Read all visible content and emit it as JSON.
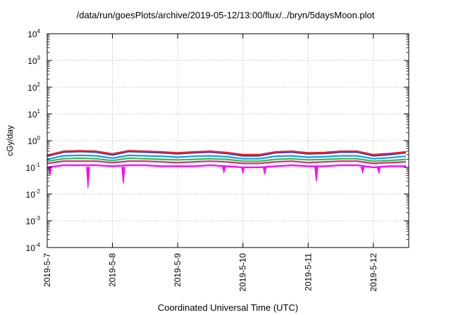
{
  "title": "/data/run/goesPlots/archive/2019-05-12/13:00/flux/../bryn/5daysMoon.plot",
  "chart_data": {
    "type": "line",
    "title": "/data/run/goesPlots/archive/2019-05-12/13:00/flux/../bryn/5daysMoon.plot",
    "xlabel": "Coordinated Universal Time (UTC)",
    "ylabel": "cGy/day",
    "yscale": "log",
    "ylim": [
      0.0001,
      10000
    ],
    "y_ticks": [
      {
        "base": "10",
        "exp": "4",
        "value": 10000
      },
      {
        "base": "10",
        "exp": "3",
        "value": 1000
      },
      {
        "base": "10",
        "exp": "2",
        "value": 100
      },
      {
        "base": "10",
        "exp": "1",
        "value": 10
      },
      {
        "base": "10",
        "exp": "0",
        "value": 1
      },
      {
        "base": "10",
        "exp": "-1",
        "value": 0.1
      },
      {
        "base": "10",
        "exp": "-2",
        "value": 0.01
      },
      {
        "base": "10",
        "exp": "-3",
        "value": 0.001
      },
      {
        "base": "10",
        "exp": "-4",
        "value": 0.0001
      }
    ],
    "xlim": [
      "2019-05-07 00:00",
      "2019-05-12 13:00"
    ],
    "x_ticks": [
      "2019-5-7",
      "2019-5-8",
      "2019-5-9",
      "2019-5-10",
      "2019-5-11",
      "2019-5-12"
    ],
    "x": [
      "2019-05-07 00:00",
      "2019-05-07 06:00",
      "2019-05-07 12:00",
      "2019-05-07 18:00",
      "2019-05-08 00:00",
      "2019-05-08 06:00",
      "2019-05-08 12:00",
      "2019-05-08 18:00",
      "2019-05-09 00:00",
      "2019-05-09 06:00",
      "2019-05-09 12:00",
      "2019-05-09 18:00",
      "2019-05-10 00:00",
      "2019-05-10 06:00",
      "2019-05-10 12:00",
      "2019-05-10 18:00",
      "2019-05-11 00:00",
      "2019-05-11 06:00",
      "2019-05-11 12:00",
      "2019-05-11 18:00",
      "2019-05-12 00:00",
      "2019-05-12 06:00",
      "2019-05-12 12:00"
    ],
    "grid": true,
    "series": [
      {
        "color": "#e8242d",
        "values": [
          0.28,
          0.4,
          0.42,
          0.4,
          0.32,
          0.42,
          0.4,
          0.38,
          0.35,
          0.38,
          0.4,
          0.36,
          0.3,
          0.3,
          0.38,
          0.4,
          0.35,
          0.36,
          0.4,
          0.4,
          0.3,
          0.33,
          0.38
        ]
      },
      {
        "color": "#2c3fcf",
        "values": [
          0.26,
          0.37,
          0.39,
          0.37,
          0.29,
          0.39,
          0.37,
          0.35,
          0.32,
          0.35,
          0.37,
          0.33,
          0.27,
          0.27,
          0.35,
          0.37,
          0.32,
          0.33,
          0.37,
          0.37,
          0.27,
          0.3,
          0.35
        ]
      },
      {
        "color": "#1a9ae0",
        "values": [
          0.2,
          0.27,
          0.28,
          0.27,
          0.22,
          0.28,
          0.27,
          0.26,
          0.24,
          0.26,
          0.27,
          0.25,
          0.21,
          0.21,
          0.26,
          0.27,
          0.24,
          0.25,
          0.27,
          0.27,
          0.21,
          0.23,
          0.26
        ]
      },
      {
        "color": "#2bbf4a",
        "values": [
          0.17,
          0.21,
          0.22,
          0.21,
          0.18,
          0.22,
          0.21,
          0.2,
          0.19,
          0.2,
          0.21,
          0.2,
          0.17,
          0.17,
          0.2,
          0.21,
          0.19,
          0.2,
          0.21,
          0.21,
          0.17,
          0.18,
          0.2
        ]
      },
      {
        "color": "#d6286e",
        "values": [
          0.14,
          0.17,
          0.17,
          0.17,
          0.15,
          0.17,
          0.17,
          0.16,
          0.15,
          0.16,
          0.17,
          0.16,
          0.14,
          0.14,
          0.16,
          0.17,
          0.15,
          0.16,
          0.17,
          0.17,
          0.14,
          0.15,
          0.16
        ]
      },
      {
        "color": "#ff00ff",
        "values": [
          0.1,
          0.12,
          0.12,
          0.12,
          0.11,
          0.12,
          0.12,
          0.11,
          0.11,
          0.11,
          0.12,
          0.11,
          0.1,
          0.1,
          0.11,
          0.12,
          0.11,
          0.11,
          0.12,
          0.12,
          0.1,
          0.11,
          0.11
        ]
      }
    ],
    "dips": [
      {
        "x": "2019-05-07 01:00",
        "value": 0.05
      },
      {
        "x": "2019-05-07 15:00",
        "value": 0.017
      },
      {
        "x": "2019-05-08 04:00",
        "value": 0.025
      },
      {
        "x": "2019-05-09 17:00",
        "value": 0.065
      },
      {
        "x": "2019-05-10 00:00",
        "value": 0.06
      },
      {
        "x": "2019-05-10 08:00",
        "value": 0.055
      },
      {
        "x": "2019-05-11 03:00",
        "value": 0.03
      },
      {
        "x": "2019-05-11 20:00",
        "value": 0.065
      },
      {
        "x": "2019-05-12 02:00",
        "value": 0.06
      }
    ]
  }
}
